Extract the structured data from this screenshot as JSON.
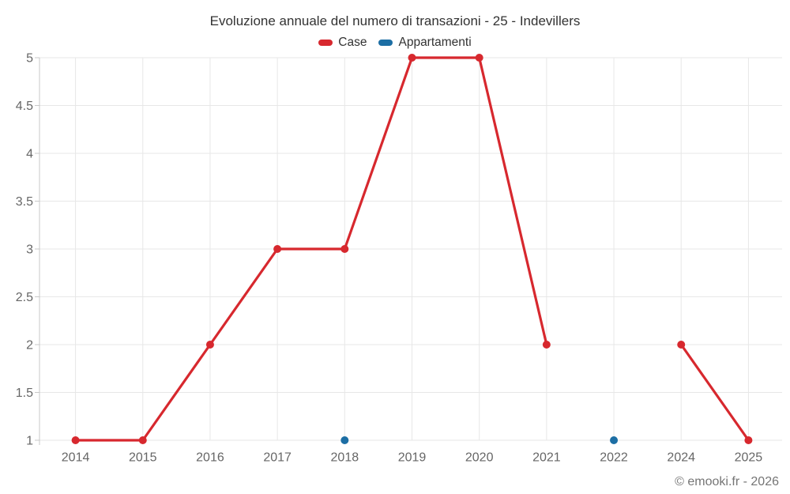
{
  "header": {
    "title": "Evoluzione annuale del numero di transazioni - 25 - Indevillers"
  },
  "footer": {
    "copyright": "© emooki.fr - 2026"
  },
  "chart_data": {
    "type": "line",
    "title": "Evoluzione annuale del numero di transazioni - 25 - Indevillers",
    "categories": [
      "2014",
      "2015",
      "2016",
      "2017",
      "2018",
      "2019",
      "2020",
      "2021",
      "2022",
      "2024",
      "2025"
    ],
    "series": [
      {
        "name": "Case",
        "color": "#d7282e",
        "values": [
          1,
          1,
          2,
          3,
          3,
          5,
          5,
          2,
          null,
          2,
          1
        ]
      },
      {
        "name": "Appartamenti",
        "color": "#1c6ea4",
        "values": [
          null,
          null,
          null,
          null,
          1,
          null,
          null,
          null,
          1,
          null,
          null
        ]
      }
    ],
    "xlabel": "",
    "ylabel": "",
    "ylim": [
      1,
      5
    ],
    "yticks": [
      1,
      1.5,
      2,
      2.5,
      3,
      3.5,
      4,
      4.5,
      5
    ],
    "grid": true,
    "legend_position": "top",
    "marker_radius": 5,
    "line_width": 3.2,
    "grid_color": "#e7e7e7",
    "axis_color": "#c9c9c9",
    "label_color": "#666666"
  }
}
